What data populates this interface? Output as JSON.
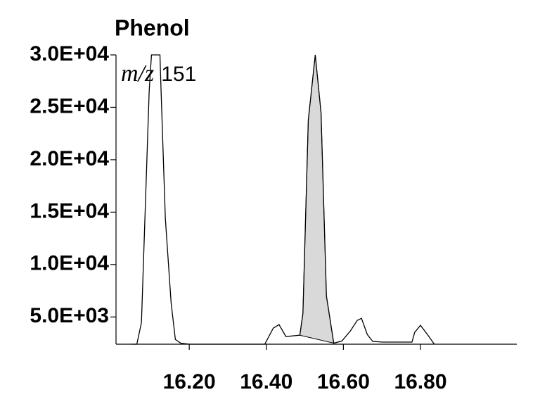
{
  "chart_data": {
    "type": "line",
    "title": "Phenol",
    "annotation": {
      "italic": "m/z",
      "text": "151"
    },
    "x": [
      16.05,
      16.064,
      16.076,
      16.096,
      16.102,
      16.124,
      16.127,
      16.138,
      16.153,
      16.164,
      16.178,
      16.2,
      16.396,
      16.418,
      16.433,
      16.451,
      16.487,
      16.495,
      16.509,
      16.527,
      16.542,
      16.556,
      16.575,
      16.596,
      16.618,
      16.636,
      16.647,
      16.662,
      16.676,
      16.702,
      16.778,
      16.785,
      16.8,
      16.818,
      16.836
    ],
    "series": [
      {
        "name": "m/z 151",
        "color": "#000000",
        "values": [
          2400,
          2400,
          4460,
          26500,
          30000,
          30000,
          26500,
          14400,
          6350,
          2850,
          2500,
          2400,
          2400,
          3930,
          4270,
          3130,
          3260,
          5330,
          23800,
          30000,
          24500,
          7000,
          2500,
          2700,
          3660,
          4670,
          4870,
          3330,
          2670,
          2600,
          2600,
          3530,
          4200,
          3330,
          2400
        ]
      }
    ],
    "shaded_x": [
      16.487,
      16.575
    ],
    "shade_color": "#d9d9d9",
    "xlim": [
      16.01,
      17.05
    ],
    "ylim": [
      2400,
      30000
    ],
    "xticks": [
      {
        "value": 16.2,
        "label": "16.20"
      },
      {
        "value": 16.4,
        "label": "16.40"
      },
      {
        "value": 16.6,
        "label": "16.60"
      },
      {
        "value": 16.8,
        "label": "16.80"
      }
    ],
    "yticks": [
      {
        "value": 5000,
        "label": "5.0E+03"
      },
      {
        "value": 10000,
        "label": "1.0E+04"
      },
      {
        "value": 15000,
        "label": "1.5E+04"
      },
      {
        "value": 20000,
        "label": "2.0E+04"
      },
      {
        "value": 25000,
        "label": "2.5E+04"
      },
      {
        "value": 30000,
        "label": "3.0E+04"
      }
    ]
  }
}
